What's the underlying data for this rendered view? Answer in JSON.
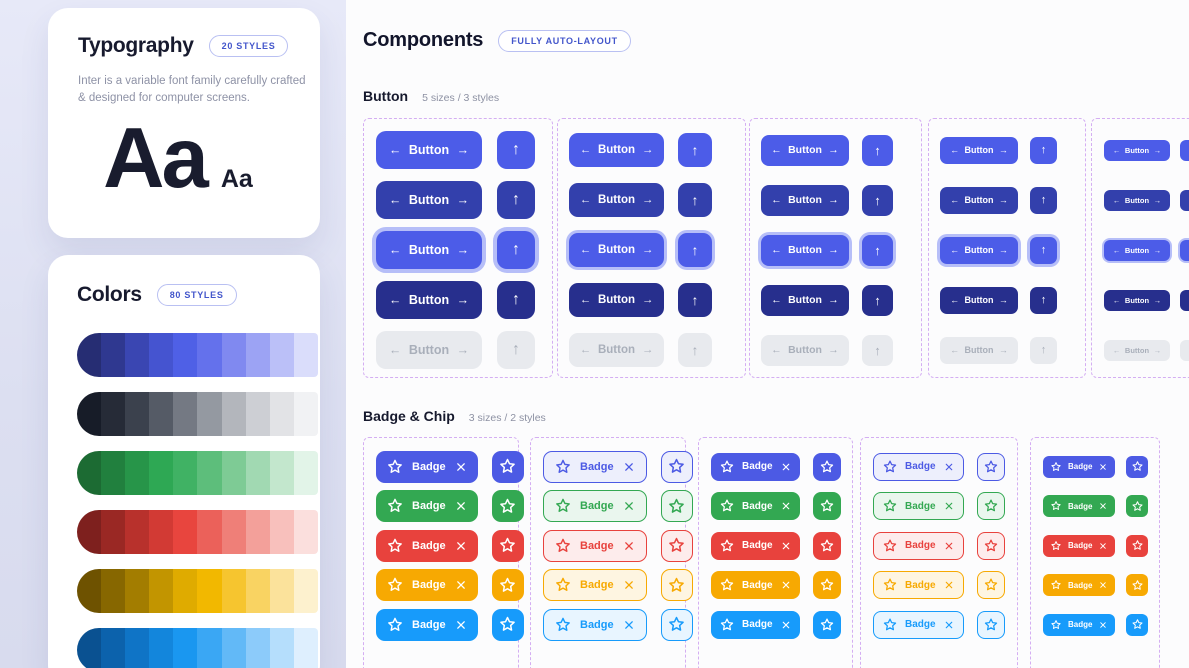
{
  "sidebar": {
    "typography": {
      "title": "Typography",
      "badge": "20 STYLES",
      "description": "Inter is a variable font family carefully crafted & designed for computer screens.",
      "specimen_large": "Aa",
      "specimen_small": "Aa"
    },
    "colors": {
      "title": "Colors",
      "badge": "80 STYLES",
      "palettes": [
        {
          "name": "indigo",
          "swatches": [
            "#262D73",
            "#2F3890",
            "#3A46B2",
            "#4554D0",
            "#4F60E6",
            "#6471EC",
            "#8089F0",
            "#9CA3F4",
            "#BBC0F8",
            "#DADDFB"
          ]
        },
        {
          "name": "gray",
          "swatches": [
            "#171C28",
            "#262B37",
            "#3B414D",
            "#555B66",
            "#747983",
            "#9499A1",
            "#B3B6BC",
            "#CDCFD4",
            "#E2E3E6",
            "#F1F2F4"
          ]
        },
        {
          "name": "green",
          "swatches": [
            "#1C6B33",
            "#21803E",
            "#279549",
            "#2EA854",
            "#40B264",
            "#5DBE7B",
            "#7ECB95",
            "#A1D9B2",
            "#C3E7CD",
            "#E2F4E8"
          ]
        },
        {
          "name": "red",
          "swatches": [
            "#7E201E",
            "#9A2824",
            "#B8312C",
            "#D23A34",
            "#E8453E",
            "#EB615A",
            "#EF7F78",
            "#F3A09A",
            "#F8C0BC",
            "#FBDFDD"
          ]
        },
        {
          "name": "amber",
          "swatches": [
            "#6E5200",
            "#876700",
            "#A37D00",
            "#C29500",
            "#DFAB00",
            "#F2B800",
            "#F6C52F",
            "#F9D362",
            "#FBE29B",
            "#FDF1CE"
          ]
        },
        {
          "name": "blue",
          "swatches": [
            "#0A5191",
            "#0C62AC",
            "#0F74C6",
            "#1386DC",
            "#1A97F0",
            "#3AA7F4",
            "#62B9F7",
            "#8CCBFA",
            "#B5DEFC",
            "#DEEFFE"
          ]
        }
      ]
    }
  },
  "components": {
    "title": "Components",
    "badge": "FULLY AUTO-LAYOUT",
    "button_section": {
      "title": "Button",
      "subtitle": "5 sizes / 3 styles",
      "label": "Button",
      "arrows": {
        "left": "←",
        "right": "→",
        "up": "↑"
      },
      "variants": [
        {
          "name": "primary",
          "bg": "#4C5CE8",
          "text": "#FFFFFF"
        },
        {
          "name": "secondary-dark",
          "bg": "#3340AC",
          "text": "#FFFFFF"
        },
        {
          "name": "focused",
          "bg": "#4C5CE8",
          "text": "#FFFFFF",
          "ring": "#B6BEF8"
        },
        {
          "name": "navy",
          "bg": "#272F8D",
          "text": "#FFFFFF"
        },
        {
          "name": "disabled",
          "bg": "#E8EAEE",
          "text": "#A9AFBA"
        }
      ]
    },
    "badge_section": {
      "title": "Badge & Chip",
      "subtitle": "3 sizes / 2 styles",
      "label": "Badge",
      "colors": [
        {
          "name": "indigo",
          "fill": "#4C5AE4",
          "tint": "#EDEFFC"
        },
        {
          "name": "green",
          "fill": "#33A852",
          "tint": "#EAF6EE"
        },
        {
          "name": "red",
          "fill": "#E8423D",
          "tint": "#FDECEC"
        },
        {
          "name": "amber",
          "fill": "#F7A902",
          "tint": "#FEF5E1"
        },
        {
          "name": "blue",
          "fill": "#179BFB",
          "tint": "#E8F5FF"
        }
      ]
    }
  },
  "theme": {
    "dashed_border": "#D4AEF2",
    "pill_text": "#4356CB",
    "pill_border": "#B9C0F2"
  }
}
